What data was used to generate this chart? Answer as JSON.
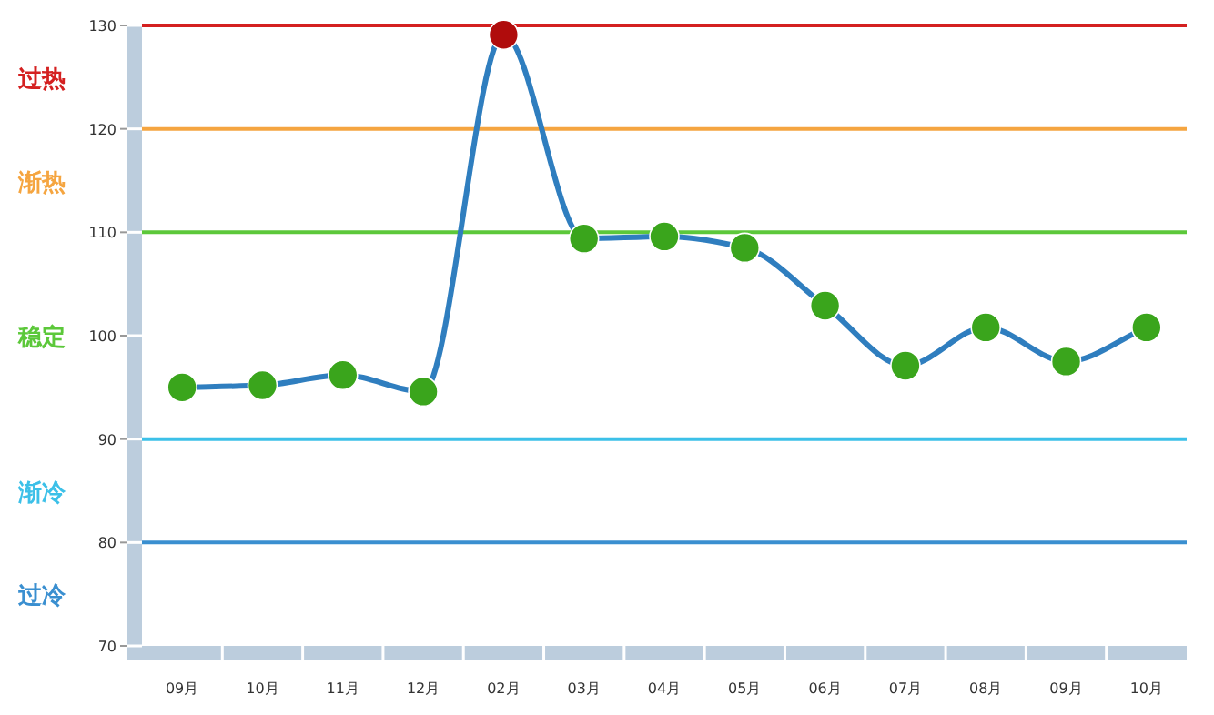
{
  "chart_data": {
    "type": "line",
    "categories": [
      "09月",
      "10月",
      "11月",
      "12月",
      "02月",
      "03月",
      "04月",
      "05月",
      "06月",
      "07月",
      "08月",
      "09月",
      "10月"
    ],
    "series": [
      {
        "color": "#2f7ebf",
        "values": [
          95.0,
          95.2,
          96.2,
          94.6,
          129.1,
          109.4,
          109.6,
          108.5,
          102.9,
          97.1,
          100.8,
          97.5,
          100.8
        ],
        "colors": [
          "#3aa51c",
          "#3aa51c",
          "#3aa51c",
          "#3aa51c",
          "#b00c0c",
          "#3aa51c",
          "#3aa51c",
          "#3aa51c",
          "#3aa51c",
          "#3aa51c",
          "#3aa51c",
          "#3aa51c",
          "#3aa51c"
        ]
      }
    ],
    "ylim": [
      70,
      130
    ],
    "yticks": [
      70,
      80,
      90,
      100,
      110,
      120,
      130
    ],
    "marker": "circle",
    "line_style": "solid",
    "grid": false,
    "ref_lines": [
      {
        "axis": "y",
        "value": 130,
        "color": "#d42020"
      },
      {
        "axis": "y",
        "value": 120,
        "color": "#f5a540"
      },
      {
        "axis": "y",
        "value": 110,
        "color": "#5cc83a"
      },
      {
        "axis": "y",
        "value": 90,
        "color": "#3cc0e8"
      },
      {
        "axis": "y",
        "value": 80,
        "color": "#3a8fd0"
      }
    ],
    "annotations": [
      "过热",
      "渐热",
      "稳定",
      "渐冷",
      "过冷"
    ]
  }
}
